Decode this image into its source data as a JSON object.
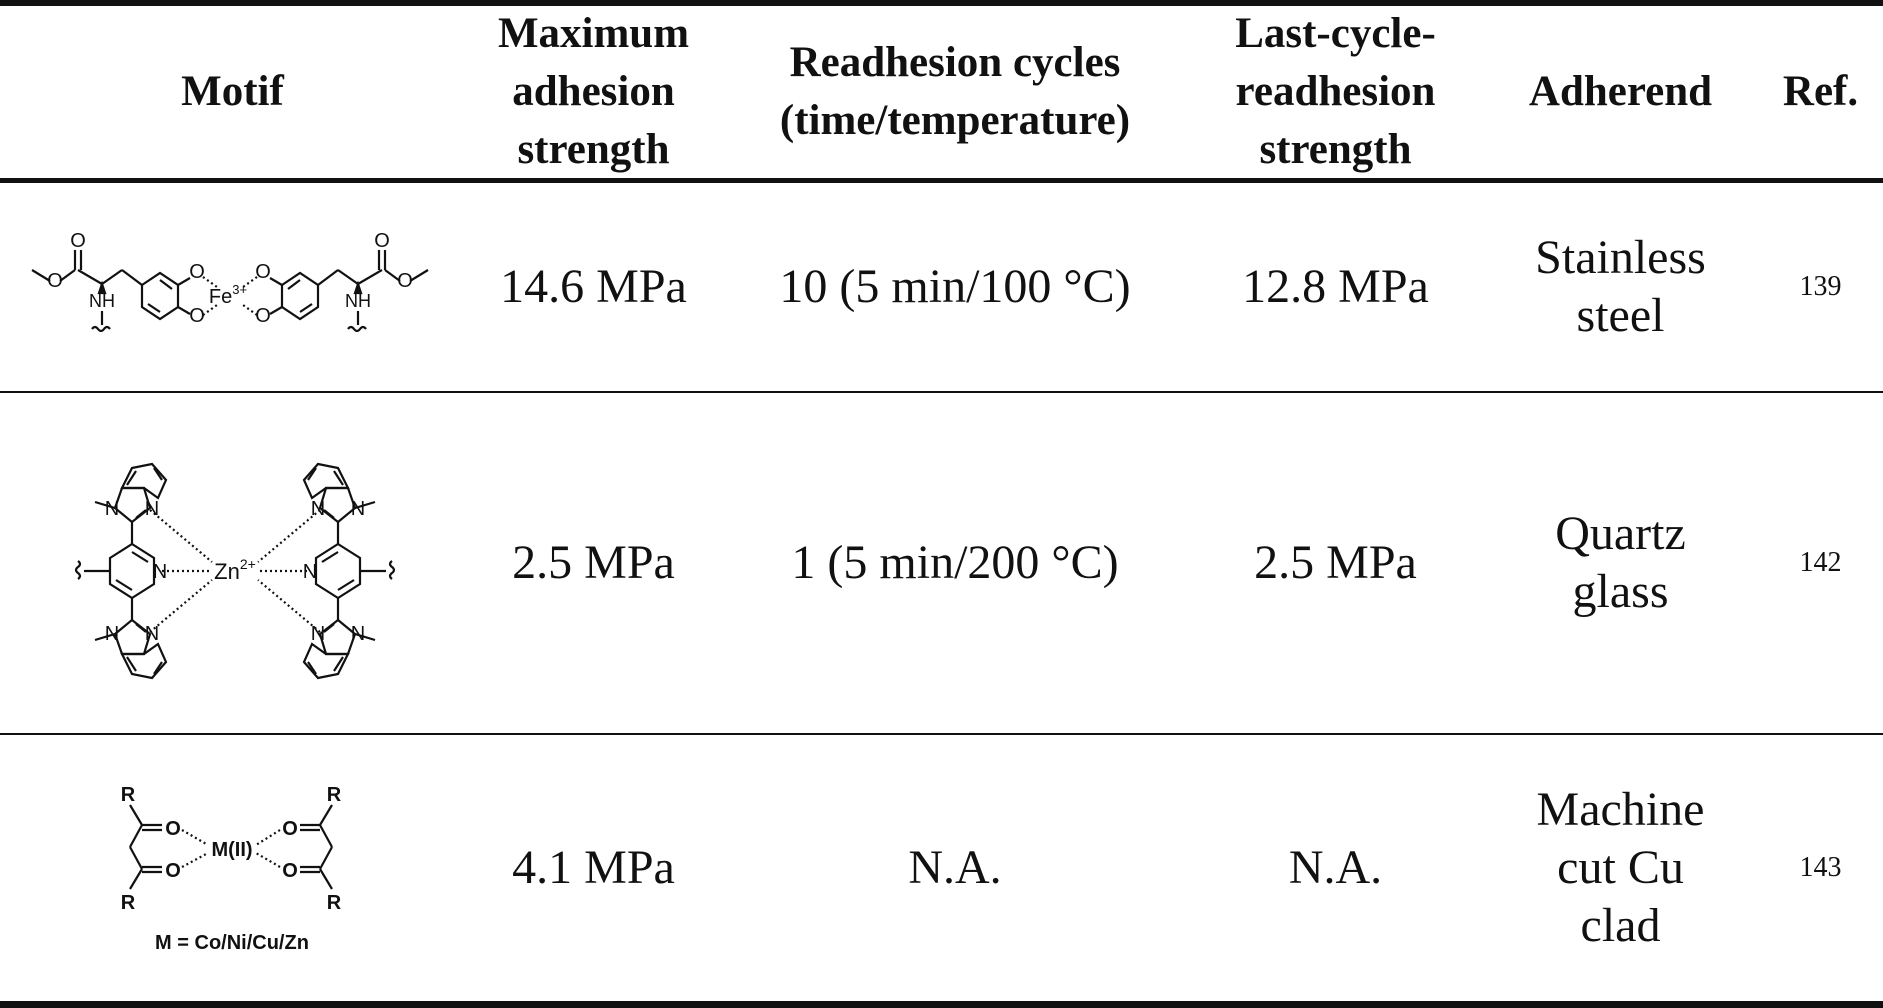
{
  "table": {
    "headers": {
      "motif": "Motif",
      "max_strength": [
        "Maximum",
        "adhesion",
        "strength"
      ],
      "cycles": [
        "Readhesion cycles",
        "(time/temperature)"
      ],
      "last_cycle": [
        "Last-cycle-",
        "readhesion",
        "strength"
      ],
      "adherend": "Adherend",
      "ref": "Ref."
    },
    "rows": [
      {
        "motif_labels": {
          "metal": "Fe",
          "charge": "3+",
          "o1": "O",
          "o2": "O",
          "o3": "O",
          "o4": "O",
          "o5": "O",
          "o6": "O",
          "nh1": "NH",
          "nh2": "NH"
        },
        "max_strength": "14.6 MPa",
        "cycles": "10 (5 min/100 °C)",
        "last_cycle": "12.8 MPa",
        "adherend": [
          "Stainless",
          "steel"
        ],
        "ref": "139"
      },
      {
        "motif_labels": {
          "metal": "Zn",
          "charge": "2+",
          "n": "N"
        },
        "max_strength": "2.5 MPa",
        "cycles": "1 (5 min/200 °C)",
        "last_cycle": "2.5 MPa",
        "adherend": [
          "Quartz",
          "glass"
        ],
        "ref": "142"
      },
      {
        "motif_labels": {
          "metal": "M(II)",
          "r": "R",
          "o": "O",
          "caption": "M = Co/Ni/Cu/Zn"
        },
        "max_strength": "4.1 MPa",
        "cycles": "N.A.",
        "last_cycle": "N.A.",
        "adherend": [
          "Machine",
          "cut Cu",
          "clad"
        ],
        "ref": "143"
      }
    ]
  }
}
